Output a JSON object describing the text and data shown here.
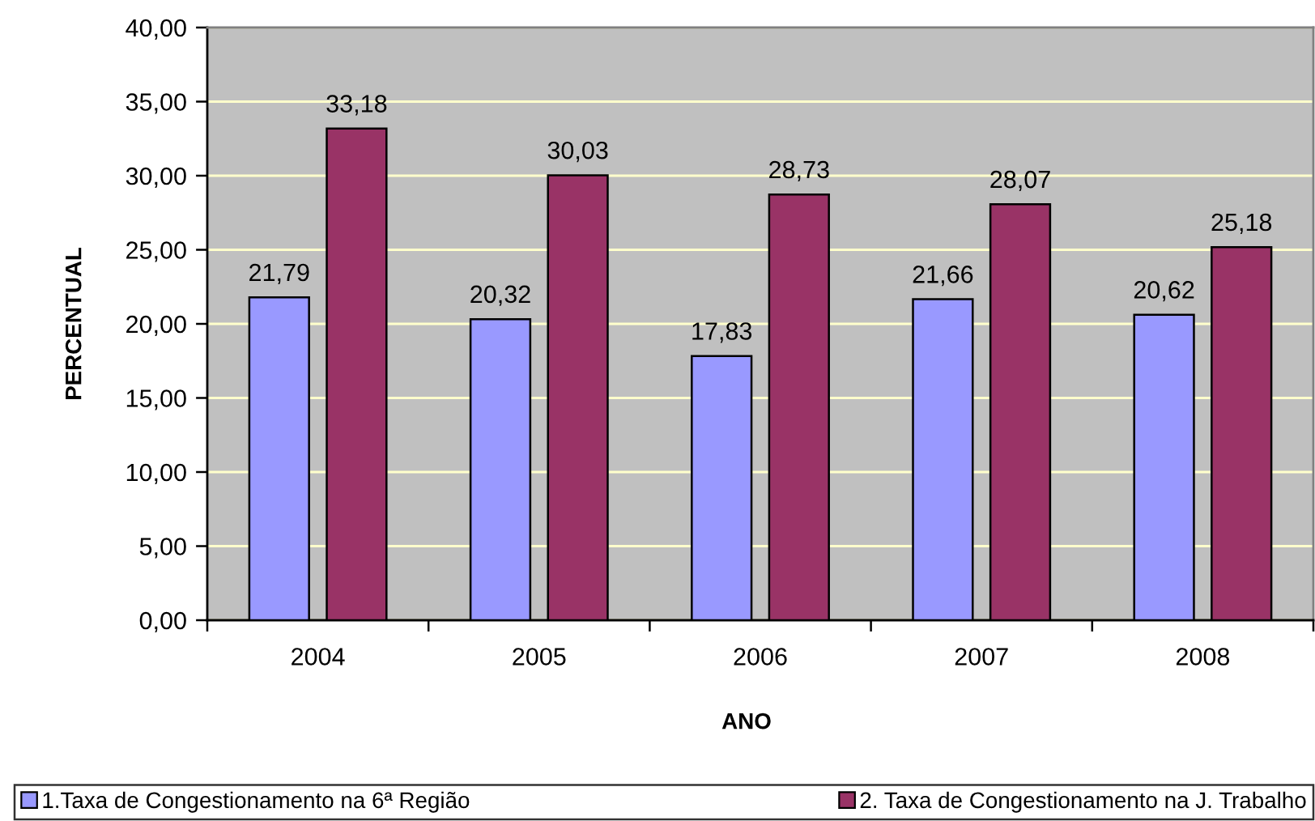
{
  "chart_data": {
    "type": "bar",
    "xlabel": "ANO",
    "ylabel": "PERCENTUAL",
    "categories": [
      "2004",
      "2005",
      "2006",
      "2007",
      "2008"
    ],
    "series": [
      {
        "name": "1.Taxa de Congestionamento na 6ª Região",
        "color": "#9999ff",
        "values": [
          21.79,
          20.32,
          17.83,
          21.66,
          20.62
        ],
        "value_labels": [
          "21,79",
          "20,32",
          "17,83",
          "21,66",
          "20,62"
        ]
      },
      {
        "name": "2. Taxa de Congestionamento na J. Trabalho",
        "color": "#993366",
        "values": [
          33.18,
          30.03,
          28.73,
          28.07,
          25.18
        ],
        "value_labels": [
          "33,18",
          "30,03",
          "28,73",
          "28,07",
          "25,18"
        ]
      }
    ],
    "ylim": [
      0,
      40
    ],
    "yticks": [
      {
        "value": 0,
        "label": "0,00"
      },
      {
        "value": 5,
        "label": "5,00"
      },
      {
        "value": 10,
        "label": "10,00"
      },
      {
        "value": 15,
        "label": "15,00"
      },
      {
        "value": 20,
        "label": "20,00"
      },
      {
        "value": 25,
        "label": "25,00"
      },
      {
        "value": 30,
        "label": "30,00"
      },
      {
        "value": 35,
        "label": "35,00"
      },
      {
        "value": 40,
        "label": "40,00"
      }
    ],
    "grid": "y",
    "legend": "bottom"
  }
}
